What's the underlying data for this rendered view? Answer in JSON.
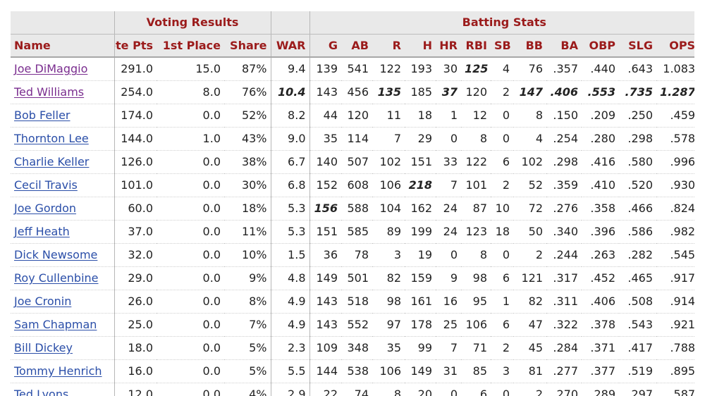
{
  "groups": {
    "voting": "Voting Results",
    "batting": "Batting Stats"
  },
  "columns": [
    "Name",
    "Vote Pts",
    "1st Place",
    "Share",
    "WAR",
    "G",
    "AB",
    "R",
    "H",
    "HR",
    "RBI",
    "SB",
    "BB",
    "BA",
    "OBP",
    "SLG",
    "OPS"
  ],
  "rows": [
    {
      "name": "Joe DiMaggio",
      "visited": true,
      "cells": [
        "291.0",
        "15.0",
        "87%",
        "9.4",
        "139",
        "541",
        "122",
        "193",
        "30",
        "125",
        "4",
        "76",
        ".357",
        ".440",
        ".643",
        "1.083"
      ],
      "leaders": [
        9
      ]
    },
    {
      "name": "Ted Williams",
      "visited": true,
      "cells": [
        "254.0",
        "8.0",
        "76%",
        "10.4",
        "143",
        "456",
        "135",
        "185",
        "37",
        "120",
        "2",
        "147",
        ".406",
        ".553",
        ".735",
        "1.287"
      ],
      "leaders": [
        3,
        6,
        8,
        11,
        12,
        13,
        14,
        15
      ]
    },
    {
      "name": "Bob Feller",
      "visited": false,
      "cells": [
        "174.0",
        "0.0",
        "52%",
        "8.2",
        "44",
        "120",
        "11",
        "18",
        "1",
        "12",
        "0",
        "8",
        ".150",
        ".209",
        ".250",
        ".459"
      ],
      "leaders": []
    },
    {
      "name": "Thornton Lee",
      "visited": false,
      "cells": [
        "144.0",
        "1.0",
        "43%",
        "9.0",
        "35",
        "114",
        "7",
        "29",
        "0",
        "8",
        "0",
        "4",
        ".254",
        ".280",
        ".298",
        ".578"
      ],
      "leaders": []
    },
    {
      "name": "Charlie Keller",
      "visited": false,
      "cells": [
        "126.0",
        "0.0",
        "38%",
        "6.7",
        "140",
        "507",
        "102",
        "151",
        "33",
        "122",
        "6",
        "102",
        ".298",
        ".416",
        ".580",
        ".996"
      ],
      "leaders": []
    },
    {
      "name": "Cecil Travis",
      "visited": false,
      "cells": [
        "101.0",
        "0.0",
        "30%",
        "6.8",
        "152",
        "608",
        "106",
        "218",
        "7",
        "101",
        "2",
        "52",
        ".359",
        ".410",
        ".520",
        ".930"
      ],
      "leaders": [
        7
      ]
    },
    {
      "name": "Joe Gordon",
      "visited": false,
      "cells": [
        "60.0",
        "0.0",
        "18%",
        "5.3",
        "156",
        "588",
        "104",
        "162",
        "24",
        "87",
        "10",
        "72",
        ".276",
        ".358",
        ".466",
        ".824"
      ],
      "leaders": [
        4
      ]
    },
    {
      "name": "Jeff Heath",
      "visited": false,
      "cells": [
        "37.0",
        "0.0",
        "11%",
        "5.3",
        "151",
        "585",
        "89",
        "199",
        "24",
        "123",
        "18",
        "50",
        ".340",
        ".396",
        ".586",
        ".982"
      ],
      "leaders": []
    },
    {
      "name": "Dick Newsome",
      "visited": false,
      "cells": [
        "32.0",
        "0.0",
        "10%",
        "1.5",
        "36",
        "78",
        "3",
        "19",
        "0",
        "8",
        "0",
        "2",
        ".244",
        ".263",
        ".282",
        ".545"
      ],
      "leaders": []
    },
    {
      "name": "Roy Cullenbine",
      "visited": false,
      "cells": [
        "29.0",
        "0.0",
        "9%",
        "4.8",
        "149",
        "501",
        "82",
        "159",
        "9",
        "98",
        "6",
        "121",
        ".317",
        ".452",
        ".465",
        ".917"
      ],
      "leaders": []
    },
    {
      "name": "Joe Cronin",
      "visited": false,
      "cells": [
        "26.0",
        "0.0",
        "8%",
        "4.9",
        "143",
        "518",
        "98",
        "161",
        "16",
        "95",
        "1",
        "82",
        ".311",
        ".406",
        ".508",
        ".914"
      ],
      "leaders": []
    },
    {
      "name": "Sam Chapman",
      "visited": false,
      "cells": [
        "25.0",
        "0.0",
        "7%",
        "4.9",
        "143",
        "552",
        "97",
        "178",
        "25",
        "106",
        "6",
        "47",
        ".322",
        ".378",
        ".543",
        ".921"
      ],
      "leaders": []
    },
    {
      "name": "Bill Dickey",
      "visited": false,
      "cells": [
        "18.0",
        "0.0",
        "5%",
        "2.3",
        "109",
        "348",
        "35",
        "99",
        "7",
        "71",
        "2",
        "45",
        ".284",
        ".371",
        ".417",
        ".788"
      ],
      "leaders": []
    },
    {
      "name": "Tommy Henrich",
      "visited": false,
      "cells": [
        "16.0",
        "0.0",
        "5%",
        "5.5",
        "144",
        "538",
        "106",
        "149",
        "31",
        "85",
        "3",
        "81",
        ".277",
        ".377",
        ".519",
        ".895"
      ],
      "leaders": []
    },
    {
      "name": "Ted Lyons",
      "visited": false,
      "cells": [
        "12.0",
        "0.0",
        "4%",
        "2.9",
        "22",
        "74",
        "8",
        "20",
        "0",
        "6",
        "0",
        "2",
        ".270",
        ".289",
        ".297",
        ".587"
      ],
      "leaders": []
    }
  ],
  "colors": {
    "header_text": "#9b1b1b",
    "link": "#2a4ea8",
    "visited_link": "#7a2d8f",
    "header_bg": "#e9e9e9"
  }
}
